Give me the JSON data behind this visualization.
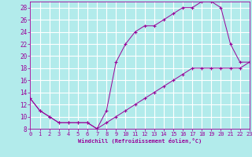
{
  "xlabel": "Windchill (Refroidissement éolien,°C)",
  "background_color": "#b2ebeb",
  "grid_color": "#ffffff",
  "line_color": "#990099",
  "xlim": [
    0,
    23
  ],
  "ylim": [
    8,
    29
  ],
  "xticks": [
    0,
    1,
    2,
    3,
    4,
    5,
    6,
    7,
    8,
    9,
    10,
    11,
    12,
    13,
    14,
    15,
    16,
    17,
    18,
    19,
    20,
    21,
    22,
    23
  ],
  "yticks": [
    8,
    10,
    12,
    14,
    16,
    18,
    20,
    22,
    24,
    26,
    28
  ],
  "line1_x": [
    0,
    1,
    2,
    3,
    4,
    5,
    6,
    7,
    8,
    9,
    10,
    11,
    12,
    13,
    14,
    15,
    16,
    17,
    18,
    19,
    20,
    21,
    22,
    23
  ],
  "line1_y": [
    13,
    11,
    10,
    9,
    9,
    9,
    9,
    8,
    11,
    19,
    22,
    24,
    25,
    25,
    26,
    27,
    28,
    28,
    29,
    29,
    28,
    22,
    19,
    19
  ],
  "line2_x": [
    0,
    1,
    2,
    3,
    4,
    5,
    6,
    7,
    8,
    9,
    10,
    11,
    12,
    13,
    14,
    15,
    16,
    17,
    18,
    19,
    20,
    21,
    22,
    23
  ],
  "line2_y": [
    13,
    11,
    10,
    9,
    9,
    9,
    9,
    8,
    9,
    10,
    11,
    12,
    13,
    14,
    15,
    16,
    17,
    18,
    18,
    18,
    18,
    18,
    18,
    19
  ]
}
